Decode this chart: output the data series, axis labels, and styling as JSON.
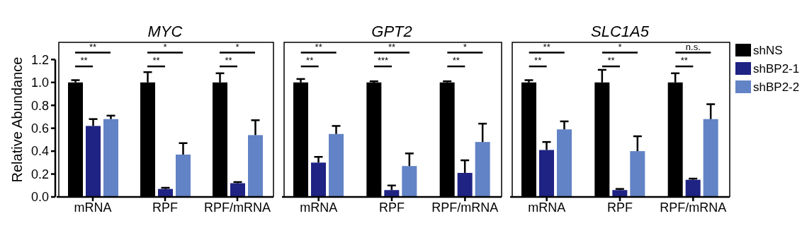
{
  "chart_data": [
    {
      "type": "bar",
      "title": "MYC",
      "ylabel": "Relative Abundance",
      "categories": [
        "mRNA",
        "RPF",
        "RPF/mRNA"
      ],
      "ylim": [
        0,
        1.35
      ],
      "yticks": [
        {
          "value": 0,
          "label": "0.0"
        },
        0.2,
        0.4,
        0.6,
        0.8,
        {
          "value": 1,
          "label": "1.0"
        },
        1.2
      ],
      "series": [
        {
          "color": "#000000",
          "values": [
            1.0,
            1.0,
            1.0
          ],
          "errors": [
            0.02,
            0.09,
            0.08
          ]
        },
        {
          "color": "#1f2383",
          "values": [
            0.62,
            0.07,
            0.12
          ],
          "errors": [
            0.06,
            0.01,
            0.01
          ]
        },
        {
          "color": "#6283c5",
          "values": [
            0.68,
            0.37,
            0.54
          ],
          "errors": [
            0.03,
            0.1,
            0.13
          ]
        }
      ],
      "annotations": [
        "**",
        "**",
        "*",
        "**",
        "*",
        "**"
      ]
    },
    {
      "type": "bar",
      "title": "GPT2",
      "categories": [
        "mRNA",
        "RPF",
        "RPF/mRNA"
      ],
      "ylim": [
        0,
        1.35
      ],
      "tick_labels": "x",
      "series": [
        {
          "color": "#000000",
          "values": [
            1.0,
            1.0,
            1.0
          ],
          "errors": [
            0.03,
            0.01,
            0.01
          ]
        },
        {
          "color": "#1f2383",
          "values": [
            0.3,
            0.06,
            0.21
          ],
          "errors": [
            0.05,
            0.04,
            0.11
          ]
        },
        {
          "color": "#6283c5",
          "values": [
            0.55,
            0.27,
            0.48
          ],
          "errors": [
            0.07,
            0.11,
            0.16
          ]
        }
      ],
      "annotations": [
        "**",
        "**",
        "**",
        "***",
        "*",
        "**"
      ]
    },
    {
      "type": "bar",
      "title": "SLC1A5",
      "categories": [
        "mRNA",
        "RPF",
        "RPF/mRNA"
      ],
      "ylim": [
        0,
        1.35
      ],
      "tick_labels": "x",
      "legend": "right",
      "series": [
        {
          "name": "shNS",
          "color": "#000000",
          "values": [
            1.0,
            1.0,
            1.0
          ],
          "errors": [
            0.02,
            0.11,
            0.08
          ]
        },
        {
          "name": "shBP2-1",
          "color": "#1f2383",
          "values": [
            0.41,
            0.06,
            0.15
          ],
          "errors": [
            0.07,
            0.01,
            0.01
          ]
        },
        {
          "name": "shBP2-2",
          "color": "#6283c5",
          "values": [
            0.59,
            0.4,
            0.68
          ],
          "errors": [
            0.07,
            0.13,
            0.13
          ]
        }
      ],
      "annotations": [
        "**",
        "**",
        "*",
        "**",
        "n.s.",
        "**"
      ]
    }
  ]
}
